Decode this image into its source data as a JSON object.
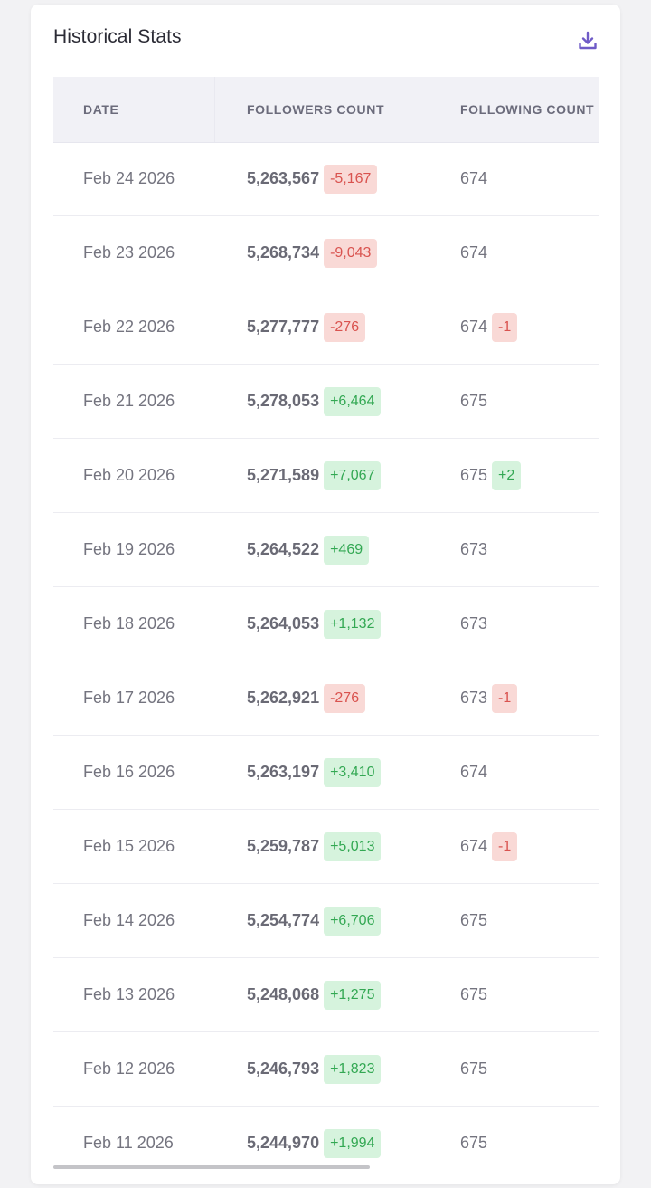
{
  "card": {
    "title": "Historical Stats",
    "download_icon": "download-icon",
    "accent_color": "#6f5bc7"
  },
  "table": {
    "columns": [
      "DATE",
      "FOLLOWERS COUNT",
      "FOLLOWING COUNT"
    ],
    "rows": [
      {
        "date": "Feb 24 2026",
        "followers": "5,263,567",
        "followers_change": "-5,167",
        "following": "674",
        "following_change": ""
      },
      {
        "date": "Feb 23 2026",
        "followers": "5,268,734",
        "followers_change": "-9,043",
        "following": "674",
        "following_change": ""
      },
      {
        "date": "Feb 22 2026",
        "followers": "5,277,777",
        "followers_change": "-276",
        "following": "674",
        "following_change": "-1"
      },
      {
        "date": "Feb 21 2026",
        "followers": "5,278,053",
        "followers_change": "+6,464",
        "following": "675",
        "following_change": ""
      },
      {
        "date": "Feb 20 2026",
        "followers": "5,271,589",
        "followers_change": "+7,067",
        "following": "675",
        "following_change": "+2"
      },
      {
        "date": "Feb 19 2026",
        "followers": "5,264,522",
        "followers_change": "+469",
        "following": "673",
        "following_change": ""
      },
      {
        "date": "Feb 18 2026",
        "followers": "5,264,053",
        "followers_change": "+1,132",
        "following": "673",
        "following_change": ""
      },
      {
        "date": "Feb 17 2026",
        "followers": "5,262,921",
        "followers_change": "-276",
        "following": "673",
        "following_change": "-1"
      },
      {
        "date": "Feb 16 2026",
        "followers": "5,263,197",
        "followers_change": "+3,410",
        "following": "674",
        "following_change": ""
      },
      {
        "date": "Feb 15 2026",
        "followers": "5,259,787",
        "followers_change": "+5,013",
        "following": "674",
        "following_change": "-1"
      },
      {
        "date": "Feb 14 2026",
        "followers": "5,254,774",
        "followers_change": "+6,706",
        "following": "675",
        "following_change": ""
      },
      {
        "date": "Feb 13 2026",
        "followers": "5,248,068",
        "followers_change": "+1,275",
        "following": "675",
        "following_change": ""
      },
      {
        "date": "Feb 12 2026",
        "followers": "5,246,793",
        "followers_change": "+1,823",
        "following": "675",
        "following_change": ""
      },
      {
        "date": "Feb 11 2026",
        "followers": "5,244,970",
        "followers_change": "+1,994",
        "following": "675",
        "following_change": ""
      }
    ]
  },
  "colors": {
    "negative_text": "#d9534f",
    "negative_bg": "#f9d9d6",
    "positive_text": "#33a853",
    "positive_bg": "#d6f3dd"
  },
  "scrollbar": {
    "horizontal_position_fraction": 0.0,
    "visible_fraction": 0.58
  }
}
